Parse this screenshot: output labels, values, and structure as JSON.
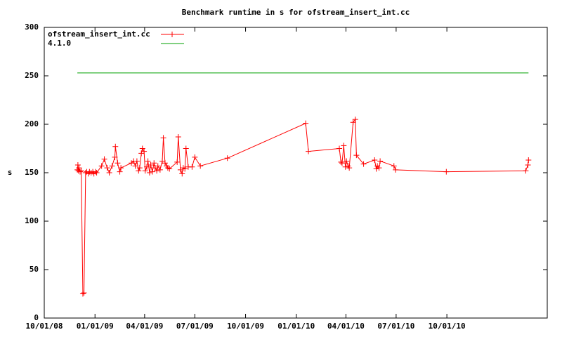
{
  "chart_data": {
    "type": "line",
    "title": "Benchmark runtime in s for ofstream_insert_int.cc",
    "ylabel": "s",
    "xlim": [
      "2008-10-01",
      "2011-04-01"
    ],
    "xticks": [
      {
        "value": "2008-10-01",
        "label": "10/01/08"
      },
      {
        "value": "2009-01-01",
        "label": "01/01/09"
      },
      {
        "value": "2009-04-01",
        "label": "04/01/09"
      },
      {
        "value": "2009-07-01",
        "label": "07/01/09"
      },
      {
        "value": "2009-10-01",
        "label": "10/01/09"
      },
      {
        "value": "2010-01-01",
        "label": "01/01/10"
      },
      {
        "value": "2010-04-01",
        "label": "04/01/10"
      },
      {
        "value": "2010-07-01",
        "label": "07/01/10"
      },
      {
        "value": "2010-10-01",
        "label": "10/01/10"
      }
    ],
    "ylim": [
      0,
      300
    ],
    "yticks": [
      0,
      50,
      100,
      150,
      200,
      250,
      300
    ],
    "grid": false,
    "legend": "top-left",
    "series": [
      {
        "name": "ofstream_insert_int.cc",
        "color": "#ff0000",
        "marker": "+",
        "x": [
          "2008-11-30",
          "2008-12-01",
          "2008-12-02",
          "2008-12-03",
          "2008-12-05",
          "2008-12-07",
          "2008-12-10",
          "2008-12-12",
          "2008-12-15",
          "2008-12-17",
          "2008-12-20",
          "2008-12-22",
          "2008-12-25",
          "2008-12-28",
          "2008-12-30",
          "2009-01-02",
          "2009-01-04",
          "2009-01-13",
          "2009-01-18",
          "2009-01-23",
          "2009-01-27",
          "2009-02-01",
          "2009-02-06",
          "2009-02-07",
          "2009-02-11",
          "2009-02-15",
          "2009-02-17",
          "2009-03-08",
          "2009-03-12",
          "2009-03-15",
          "2009-03-18",
          "2009-03-21",
          "2009-03-23",
          "2009-03-26",
          "2009-03-28",
          "2009-03-31",
          "2009-04-02",
          "2009-04-05",
          "2009-04-07",
          "2009-04-10",
          "2009-04-12",
          "2009-04-15",
          "2009-04-18",
          "2009-04-20",
          "2009-04-23",
          "2009-04-25",
          "2009-04-29",
          "2009-05-03",
          "2009-05-05",
          "2009-05-08",
          "2009-05-11",
          "2009-05-13",
          "2009-05-16",
          "2009-05-30",
          "2009-06-01",
          "2009-06-05",
          "2009-06-08",
          "2009-06-10",
          "2009-06-13",
          "2009-06-15",
          "2009-06-19",
          "2009-06-26",
          "2009-07-01",
          "2009-07-11",
          "2009-08-29",
          "2010-01-18",
          "2010-01-23",
          "2010-03-20",
          "2010-03-23",
          "2010-03-25",
          "2010-03-28",
          "2010-03-31",
          "2010-04-02",
          "2010-04-05",
          "2010-04-07",
          "2010-04-14",
          "2010-04-18",
          "2010-04-20",
          "2010-05-03",
          "2010-05-23",
          "2010-05-26",
          "2010-05-28",
          "2010-05-31",
          "2010-06-02",
          "2010-06-27",
          "2010-06-30",
          "2010-09-30",
          "2011-02-21",
          "2011-02-25",
          "2011-02-26"
        ],
        "values": [
          153,
          158,
          152,
          155,
          151,
          152,
          25,
          26,
          150,
          151,
          149,
          151,
          150,
          151,
          149,
          151,
          150,
          157,
          164,
          155,
          150,
          157,
          166,
          177,
          160,
          151,
          155,
          160,
          162,
          157,
          162,
          152,
          155,
          170,
          175,
          172,
          152,
          156,
          162,
          150,
          158,
          151,
          160,
          155,
          152,
          157,
          153,
          162,
          186,
          160,
          157,
          155,
          154,
          161,
          187,
          153,
          149,
          155,
          154,
          175,
          156,
          156,
          166,
          157,
          165,
          201,
          172,
          175,
          161,
          160,
          178,
          156,
          162,
          157,
          155,
          202,
          205,
          168,
          159,
          163,
          154,
          157,
          155,
          162,
          157,
          153,
          151,
          152,
          158,
          163
        ]
      },
      {
        "name": "4.1.0",
        "color": "#00a000",
        "x": [
          "2008-11-30",
          "2011-02-26"
        ],
        "values": [
          253,
          253
        ]
      }
    ]
  }
}
